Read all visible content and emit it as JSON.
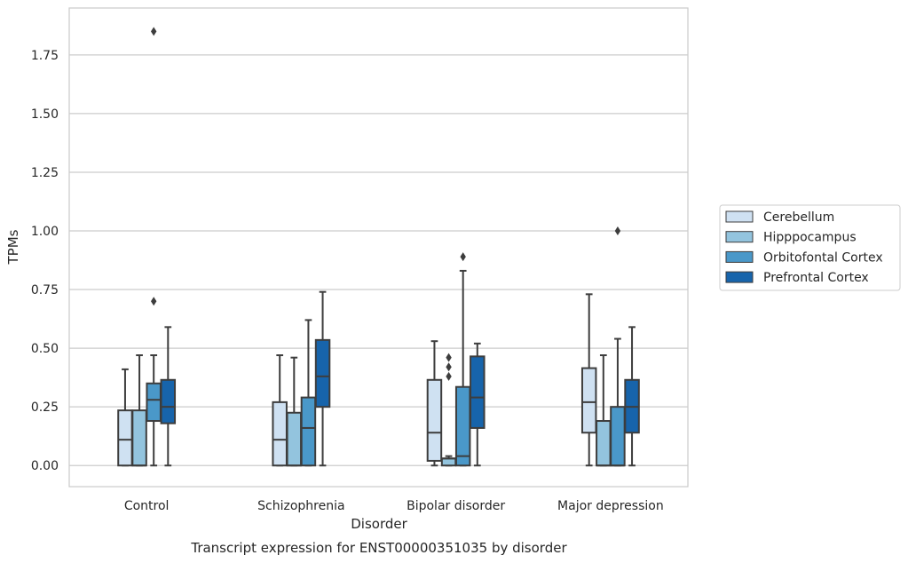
{
  "chart_data": {
    "type": "box",
    "caption": "Transcript expression for ENST00000351035 by disorder",
    "xlabel": "Disorder",
    "ylabel": "TPMs",
    "ylim": [
      -0.09,
      1.95
    ],
    "yticks": [
      0.0,
      0.25,
      0.5,
      0.75,
      1.0,
      1.25,
      1.5,
      1.75
    ],
    "ytick_labels": [
      "0.00",
      "0.25",
      "0.50",
      "0.75",
      "1.00",
      "1.25",
      "1.50",
      "1.75"
    ],
    "grid": true,
    "legend_position": "right",
    "categories": [
      "Control",
      "Schizophrenia",
      "Bipolar disorder",
      "Major depression"
    ],
    "series": [
      {
        "name": "Cerebellum",
        "color": "#cfe1f2",
        "boxes": [
          {
            "whisker_low": 0.0,
            "q1": 0.0,
            "median": 0.11,
            "q3": 0.235,
            "whisker_high": 0.41,
            "outliers": []
          },
          {
            "whisker_low": 0.0,
            "q1": 0.0,
            "median": 0.11,
            "q3": 0.27,
            "whisker_high": 0.47,
            "outliers": []
          },
          {
            "whisker_low": 0.0,
            "q1": 0.02,
            "median": 0.14,
            "q3": 0.365,
            "whisker_high": 0.53,
            "outliers": []
          },
          {
            "whisker_low": 0.0,
            "q1": 0.14,
            "median": 0.27,
            "q3": 0.415,
            "whisker_high": 0.73,
            "outliers": []
          }
        ]
      },
      {
        "name": "Hipppocampus",
        "color": "#93c4de",
        "boxes": [
          {
            "whisker_low": 0.0,
            "q1": 0.0,
            "median": 0.0,
            "q3": 0.235,
            "whisker_high": 0.47,
            "outliers": []
          },
          {
            "whisker_low": 0.0,
            "q1": 0.0,
            "median": 0.0,
            "q3": 0.225,
            "whisker_high": 0.46,
            "outliers": []
          },
          {
            "whisker_low": 0.0,
            "q1": 0.0,
            "median": 0.03,
            "q3": 0.03,
            "whisker_high": 0.04,
            "outliers": [
              0.38,
              0.42,
              0.46
            ]
          },
          {
            "whisker_low": 0.0,
            "q1": 0.0,
            "median": 0.0,
            "q3": 0.19,
            "whisker_high": 0.47,
            "outliers": []
          }
        ]
      },
      {
        "name": "Orbitofontal Cortex",
        "color": "#4a98c9",
        "boxes": [
          {
            "whisker_low": 0.0,
            "q1": 0.19,
            "median": 0.28,
            "q3": 0.35,
            "whisker_high": 0.47,
            "outliers": [
              0.7,
              1.85
            ]
          },
          {
            "whisker_low": 0.0,
            "q1": 0.0,
            "median": 0.16,
            "q3": 0.29,
            "whisker_high": 0.62,
            "outliers": []
          },
          {
            "whisker_low": 0.0,
            "q1": 0.0,
            "median": 0.04,
            "q3": 0.335,
            "whisker_high": 0.83,
            "outliers": [
              0.89
            ]
          },
          {
            "whisker_low": 0.0,
            "q1": 0.0,
            "median": 0.0,
            "q3": 0.25,
            "whisker_high": 0.54,
            "outliers": [
              1.0
            ]
          }
        ]
      },
      {
        "name": "Prefrontal Cortex",
        "color": "#1764ab",
        "boxes": [
          {
            "whisker_low": 0.0,
            "q1": 0.18,
            "median": 0.25,
            "q3": 0.365,
            "whisker_high": 0.59,
            "outliers": []
          },
          {
            "whisker_low": 0.0,
            "q1": 0.25,
            "median": 0.38,
            "q3": 0.535,
            "whisker_high": 0.74,
            "outliers": []
          },
          {
            "whisker_low": 0.0,
            "q1": 0.16,
            "median": 0.29,
            "q3": 0.465,
            "whisker_high": 0.52,
            "outliers": []
          },
          {
            "whisker_low": 0.0,
            "q1": 0.14,
            "median": 0.25,
            "q3": 0.365,
            "whisker_high": 0.59,
            "outliers": []
          }
        ]
      }
    ]
  }
}
